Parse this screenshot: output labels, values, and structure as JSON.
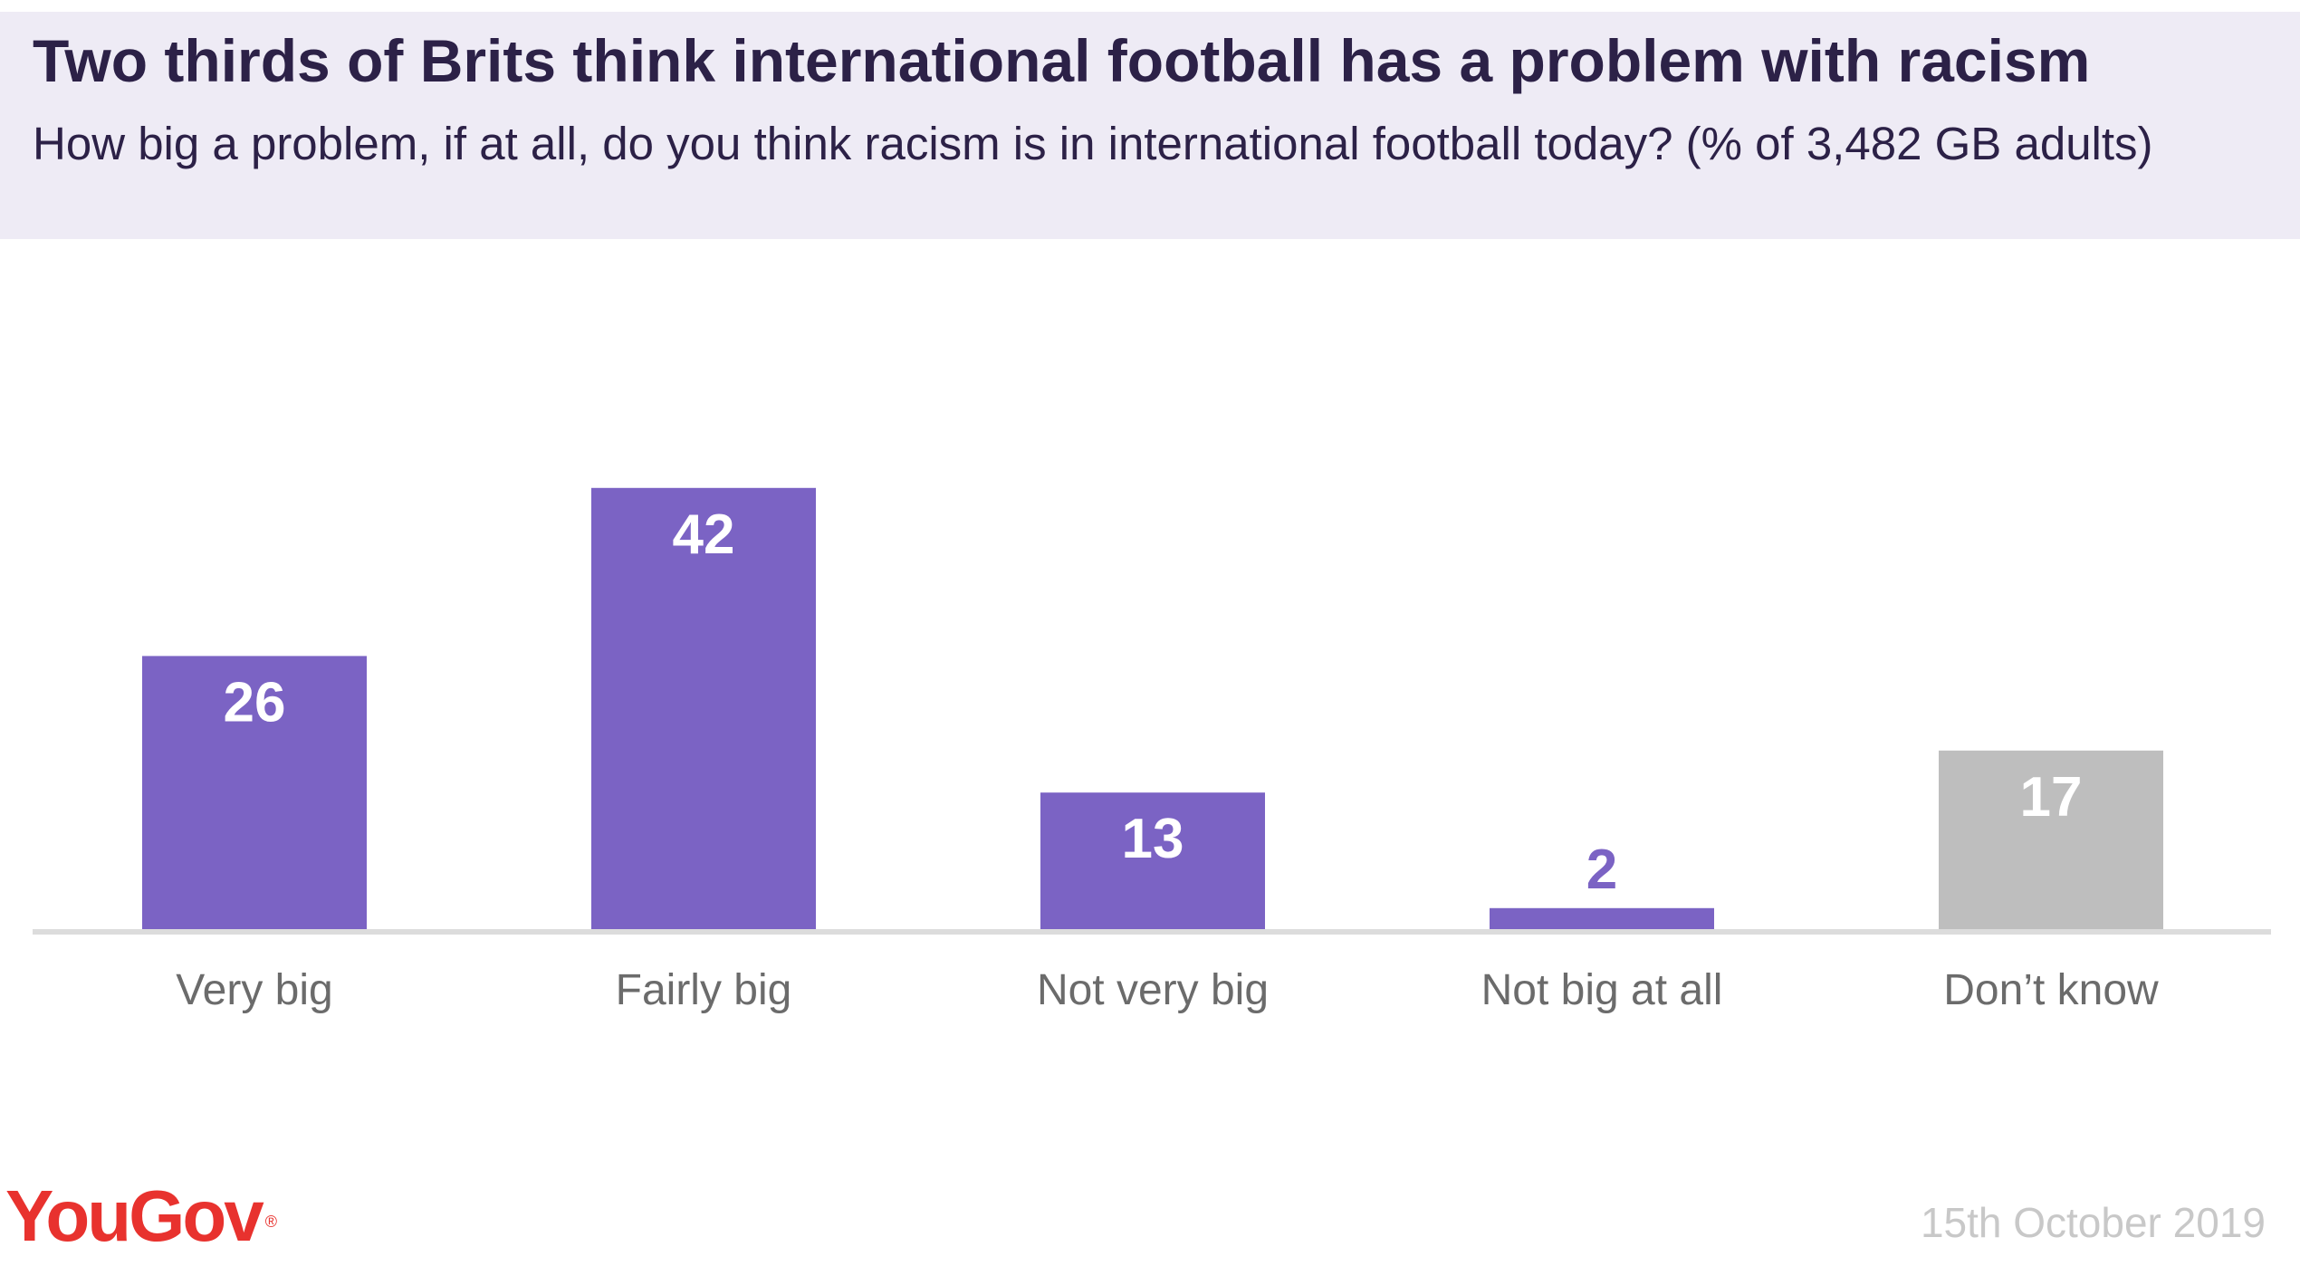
{
  "header": {
    "title": "Two thirds of Brits think international football has a problem with racism",
    "subtitle": "How big a problem, if at all, do you think racism is in international football today? (% of 3,482 GB adults)"
  },
  "chart_data": {
    "type": "bar",
    "title": "Two thirds of Brits think international football has a problem with racism",
    "subtitle": "How big a problem, if at all, do you think racism is in international football today? (% of 3,482 GB adults)",
    "categories": [
      "Very big",
      "Fairly big",
      "Not very big",
      "Not big at all",
      "Don’t know"
    ],
    "values": [
      26,
      42,
      13,
      2,
      17
    ],
    "bar_colors": [
      "#7b63c4",
      "#7b63c4",
      "#7b63c4",
      "#7b63c4",
      "#bebebe"
    ],
    "value_label_colors": [
      "#ffffff",
      "#ffffff",
      "#ffffff",
      "#7b63c4",
      "#ffffff"
    ],
    "xlabel": "",
    "ylabel": "",
    "ylim": [
      0,
      65
    ],
    "grid": false,
    "axis_color": "#dcdcdc"
  },
  "footer": {
    "brand": "YouGov",
    "brand_mark": "®",
    "brand_color": "#e8322e",
    "date": "15th October 2019"
  }
}
